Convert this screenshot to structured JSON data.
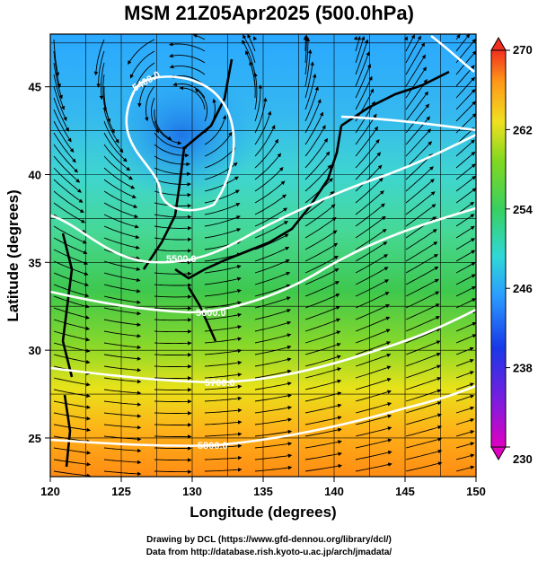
{
  "title": "MSM 21Z05Apr2025 (500.0hPa)",
  "x_axis": {
    "label": "Longitude (degrees)",
    "range": [
      120,
      150
    ],
    "ticks": [
      "120",
      "125",
      "130",
      "135",
      "140",
      "145",
      "150"
    ]
  },
  "y_axis": {
    "label": "Latitude  (degrees)",
    "range": [
      22.8,
      48
    ],
    "ticks": [
      "25",
      "30",
      "35",
      "40",
      "45"
    ]
  },
  "colorbar": {
    "range": [
      230,
      270
    ],
    "ticks": [
      "230",
      "238",
      "246",
      "254",
      "262",
      "270"
    ]
  },
  "contours": [
    {
      "label": "5400.0"
    },
    {
      "label": "5500.0"
    },
    {
      "label": "5600.0"
    },
    {
      "label": "5700.0"
    },
    {
      "label": "5800.0"
    }
  ],
  "credits": {
    "line1": "Drawing by DCL (https://www.gfd-dennou.org/library/dcl/)",
    "line2": "Data from http://database.rish.kyoto-u.ac.jp/arch/jmadata/"
  }
}
